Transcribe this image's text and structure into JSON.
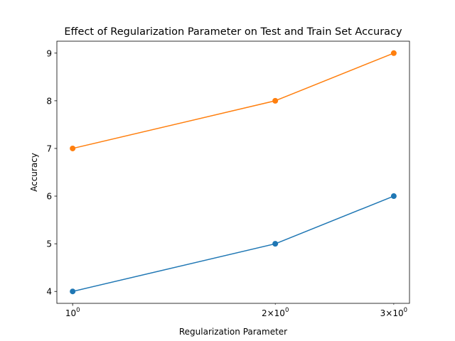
{
  "chart_data": {
    "type": "line",
    "title": "Effect of Regularization Parameter on Test and Train Set Accuracy",
    "xlabel": "Regularization Parameter",
    "ylabel": "Accuracy",
    "xscale": "log",
    "x": [
      1,
      2,
      3
    ],
    "xticks": [
      {
        "value": 1,
        "base": "10",
        "exp": "0"
      },
      {
        "value": 2,
        "base": "2×10",
        "exp": "0"
      },
      {
        "value": 3,
        "base": "3×10",
        "exp": "0"
      }
    ],
    "yticks": [
      4,
      5,
      6,
      7,
      8,
      9
    ],
    "ylim": [
      3.75,
      9.25
    ],
    "xlim": [
      0.9475,
      3.1658
    ],
    "grid": false,
    "legend": "none",
    "series": [
      {
        "values": [
          4,
          5,
          6
        ],
        "color": "#1f77b4",
        "marker": "circle"
      },
      {
        "values": [
          7,
          8,
          9
        ],
        "color": "#ff7f0e",
        "marker": "circle"
      }
    ]
  }
}
